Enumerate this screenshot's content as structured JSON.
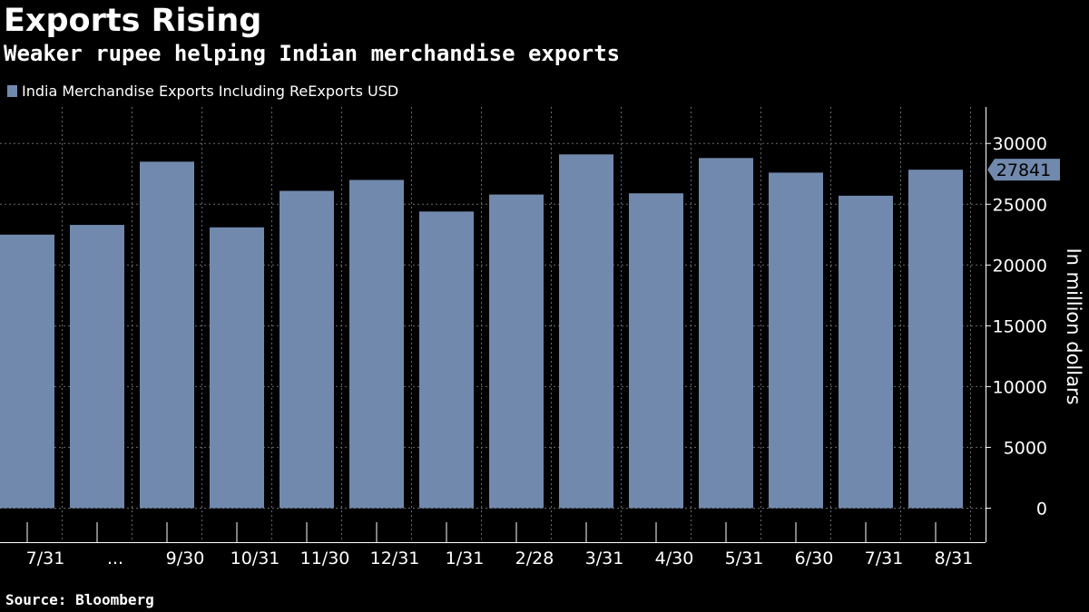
{
  "chart_data": {
    "type": "bar",
    "title": "Exports Rising",
    "subtitle": "Weaker rupee helping Indian merchandise exports",
    "ylabel": "In million dollars",
    "xlabel": "",
    "legend": "top-left",
    "grid": true,
    "ylim": [
      -2800,
      33000
    ],
    "yticks": [
      0,
      5000,
      10000,
      15000,
      20000,
      25000,
      30000
    ],
    "categories": [
      "7/31",
      "...",
      "9/30",
      "10/31",
      "11/30",
      "12/31",
      "1/31",
      "2/28",
      "3/31",
      "4/30",
      "5/31",
      "6/30",
      "7/31",
      "8/31"
    ],
    "series": [
      {
        "name": "India Merchandise Exports Including ReExports USD",
        "color": "#7189ad",
        "values": [
          22500,
          23300,
          28500,
          23100,
          26100,
          27000,
          24400,
          25800,
          29100,
          25900,
          28800,
          27600,
          25700,
          27841
        ]
      }
    ],
    "last_value_label": "27841",
    "source": "Source: Bloomberg"
  }
}
